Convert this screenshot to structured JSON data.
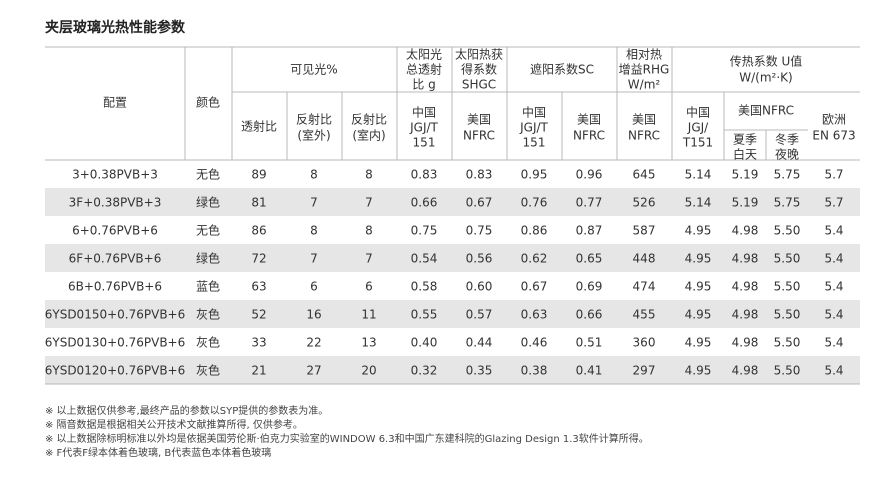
{
  "title": "夹层玻璃光热性能参数",
  "header": {
    "config": "配置",
    "color": "颜色",
    "visible": "可见光%",
    "transmit": "透射比",
    "reflect_out": [
      "反射比",
      "(室外)"
    ],
    "reflect_in": [
      "反射比",
      "(室内)"
    ],
    "solar_total": [
      "太阳光",
      "总透射",
      "比 g"
    ],
    "shgc": [
      "太阳热获",
      "得系数",
      "SHGC"
    ],
    "sc": "遮阳系数SC",
    "rhg": [
      "相对热",
      "增益RHG",
      "W/m²"
    ],
    "u": [
      "传热系数 U值",
      "W/(m²·K)"
    ],
    "g_china": [
      "中国",
      "JGJ/T",
      "151"
    ],
    "g_us": [
      "美国",
      "NFRC"
    ],
    "sc_china": [
      "中国",
      "JGJ/T",
      "151"
    ],
    "sc_us": [
      "美国",
      "NFRC"
    ],
    "rhg_us": [
      "美国",
      "NFRC"
    ],
    "u_china": [
      "中国",
      "JGJ/",
      "T151"
    ],
    "u_us": "美国NFRC",
    "u_summer": [
      "夏季",
      "白天"
    ],
    "u_winter": [
      "冬季",
      "夜晚"
    ],
    "u_eu": [
      "欧洲",
      "EN 673"
    ]
  },
  "table": {
    "rows": [
      [
        "3+0.38PVB+3",
        "无色",
        "89",
        "8",
        "8",
        "0.83",
        "0.83",
        "0.95",
        "0.96",
        "645",
        "5.14",
        "5.19",
        "5.75",
        "5.7"
      ],
      [
        "3F+0.38PVB+3",
        "绿色",
        "81",
        "7",
        "7",
        "0.66",
        "0.67",
        "0.76",
        "0.77",
        "526",
        "5.14",
        "5.19",
        "5.75",
        "5.7"
      ],
      [
        "6+0.76PVB+6",
        "无色",
        "86",
        "8",
        "8",
        "0.75",
        "0.75",
        "0.86",
        "0.87",
        "587",
        "4.95",
        "4.98",
        "5.50",
        "5.4"
      ],
      [
        "6F+0.76PVB+6",
        "绿色",
        "72",
        "7",
        "7",
        "0.54",
        "0.56",
        "0.62",
        "0.65",
        "448",
        "4.95",
        "4.98",
        "5.50",
        "5.4"
      ],
      [
        "6B+0.76PVB+6",
        "蓝色",
        "63",
        "6",
        "6",
        "0.58",
        "0.60",
        "0.67",
        "0.69",
        "474",
        "4.95",
        "4.98",
        "5.50",
        "5.4"
      ],
      [
        "6YSD0150+0.76PVB+6",
        "灰色",
        "52",
        "16",
        "11",
        "0.55",
        "0.57",
        "0.63",
        "0.66",
        "455",
        "4.95",
        "4.98",
        "5.50",
        "5.4"
      ],
      [
        "6YSD0130+0.76PVB+6",
        "灰色",
        "33",
        "22",
        "13",
        "0.40",
        "0.44",
        "0.46",
        "0.51",
        "360",
        "4.95",
        "4.98",
        "5.50",
        "5.4"
      ],
      [
        "6YSD0120+0.76PVB+6",
        "灰色",
        "21",
        "27",
        "20",
        "0.32",
        "0.35",
        "0.38",
        "0.41",
        "297",
        "4.95",
        "4.98",
        "5.50",
        "5.4"
      ]
    ]
  },
  "notes": [
    "※ 以上数据仅供参考,最终产品的参数以SYP提供的参数表为准。",
    "※ 隔音数据是根据相关公开技术文献推算所得, 仅供参考。",
    "※ 以上数据除标明标准以外均是依据美国劳伦斯·伯克力实验室的WINDOW 6.3和中国广东建科院的Glazing Design 1.3软件计算所得。",
    "※ F代表F绿本体着色玻璃, B代表蓝色本体着色玻璃"
  ]
}
